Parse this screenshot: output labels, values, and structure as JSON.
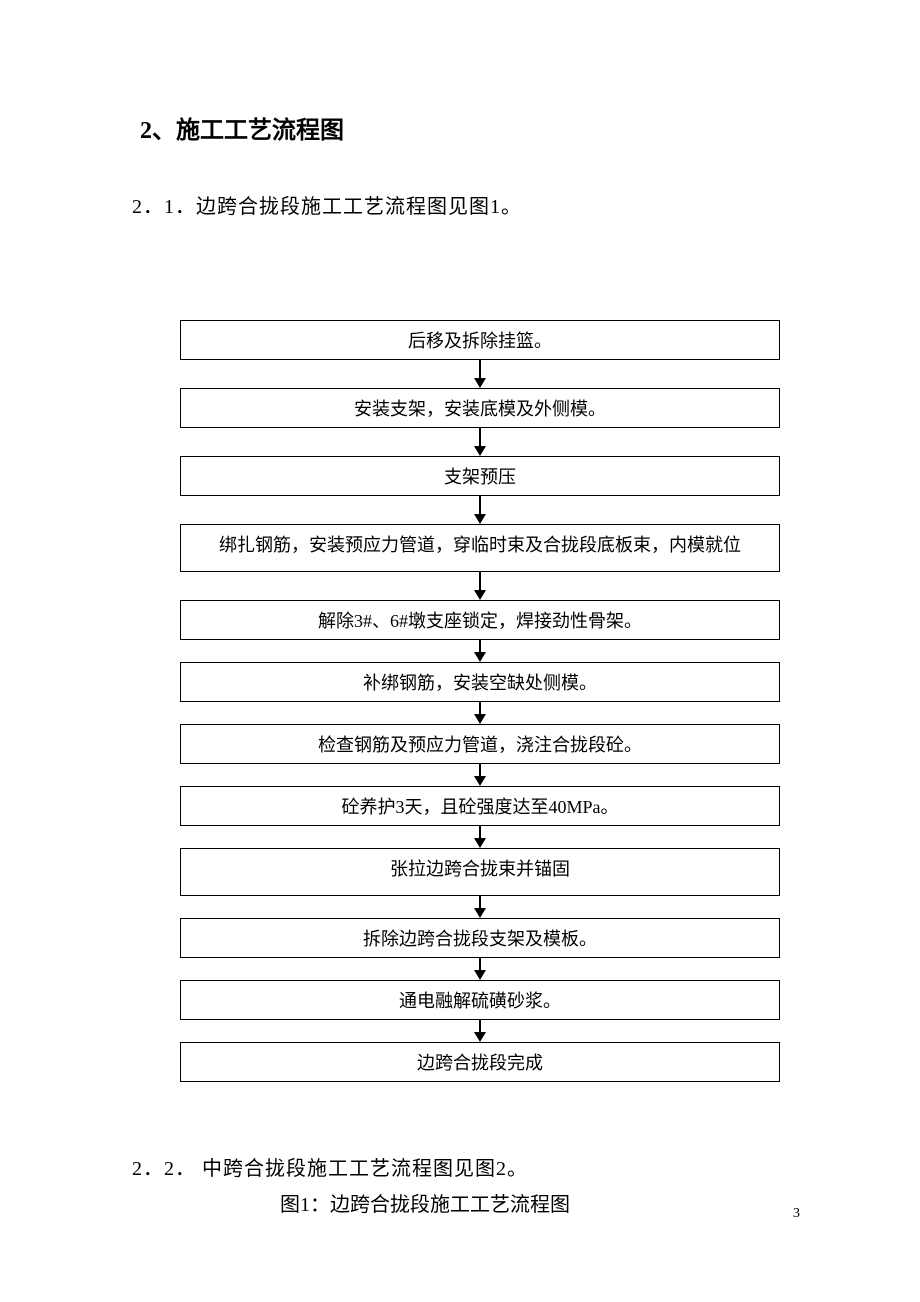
{
  "section_title": "2、施工工艺流程图",
  "subtitle_1": "2．1．边跨合拢段施工工艺流程图见图1。",
  "subtitle_2": "2．2．  中跨合拢段施工工艺流程图见图2。",
  "figure_caption": "图1：边跨合拢段施工工艺流程图",
  "page_number": "3",
  "flowchart": {
    "type": "flowchart",
    "background_color": "#ffffff",
    "box_border_color": "#000000",
    "box_border_width": 1,
    "text_color": "#000000",
    "font_size": 18,
    "arrow_color": "#000000",
    "nodes": [
      {
        "id": 0,
        "label": "后移及拆除挂篮。",
        "tall": false
      },
      {
        "id": 1,
        "label": "安装支架，安装底模及外侧模。",
        "tall": false
      },
      {
        "id": 2,
        "label": "支架预压",
        "tall": false
      },
      {
        "id": 3,
        "label": "绑扎钢筋，安装预应力管道，穿临时束及合拢段底板束，内模就位",
        "tall": true
      },
      {
        "id": 4,
        "label": "解除3#、6#墩支座锁定，焊接劲性骨架。",
        "tall": false
      },
      {
        "id": 5,
        "label": "补绑钢筋，安装空缺处侧模。",
        "tall": false
      },
      {
        "id": 6,
        "label": "检查钢筋及预应力管道，浇注合拢段砼。",
        "tall": false
      },
      {
        "id": 7,
        "label": "砼养护3天，且砼强度达至40MPa。",
        "tall": false
      },
      {
        "id": 8,
        "label": "张拉边跨合拢束并锚固",
        "tall": true
      },
      {
        "id": 9,
        "label": "拆除边跨合拢段支架及模板。",
        "tall": false
      },
      {
        "id": 10,
        "label": "通电融解硫磺砂浆。",
        "tall": false
      },
      {
        "id": 11,
        "label": "边跨合拢段完成",
        "tall": false
      }
    ]
  }
}
